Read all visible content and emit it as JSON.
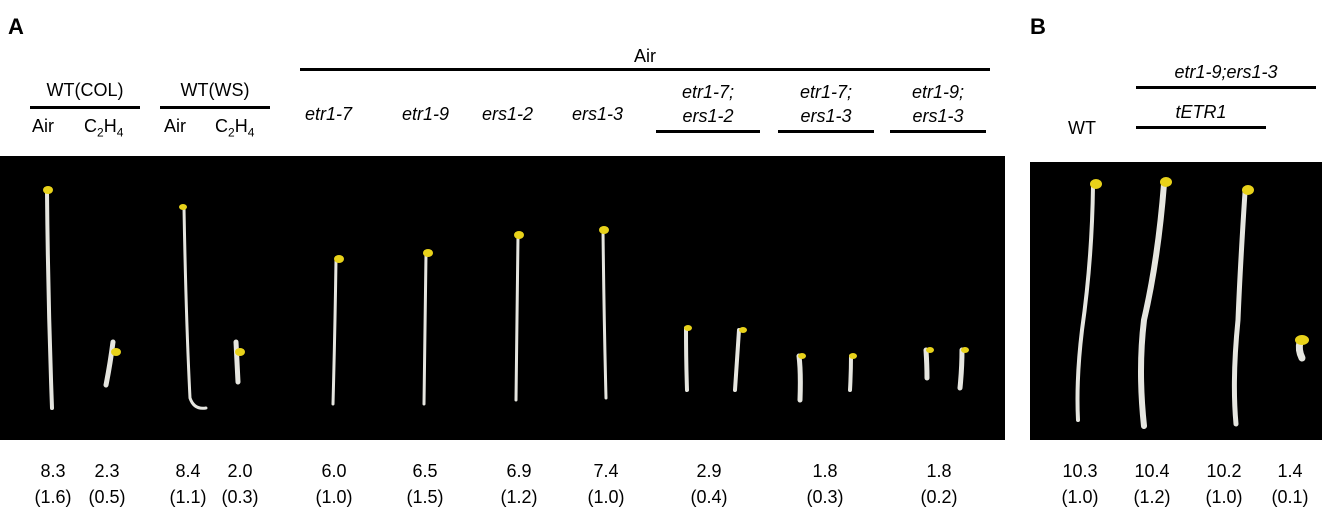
{
  "panels": [
    {
      "label": "A",
      "group_headers": [
        {
          "text": "Air"
        },
        {
          "text": "WT(COL)"
        },
        {
          "text": "WT(WS)"
        }
      ],
      "condition_labels": [
        "Air",
        "C2H4",
        "Air",
        "C2H4"
      ],
      "genotypes": [
        "etr1-7",
        "etr1-9",
        "ers1-2",
        "ers1-3"
      ],
      "double_mutants": [
        {
          "line1": "etr1-7;",
          "line2": "ers1-2"
        },
        {
          "line1": "etr1-7;",
          "line2": "ers1-3"
        },
        {
          "line1": "etr1-9;",
          "line2": "ers1-3"
        }
      ],
      "measurements": [
        {
          "mean": "8.3",
          "sd": "(1.6)"
        },
        {
          "mean": "2.3",
          "sd": "(0.5)"
        },
        {
          "mean": "8.4",
          "sd": "(1.1)"
        },
        {
          "mean": "2.0",
          "sd": "(0.3)"
        },
        {
          "mean": "6.0",
          "sd": "(1.0)"
        },
        {
          "mean": "6.5",
          "sd": "(1.5)"
        },
        {
          "mean": "6.9",
          "sd": "(1.2)"
        },
        {
          "mean": "7.4",
          "sd": "(1.0)"
        },
        {
          "mean": "2.9",
          "sd": "(0.4)"
        },
        {
          "mean": "1.8",
          "sd": "(0.3)"
        },
        {
          "mean": "1.8",
          "sd": "(0.2)"
        }
      ]
    },
    {
      "label": "B",
      "genotype_header": "etr1-9;ers1-3",
      "transgene": "tETR1",
      "wt_label": "WT",
      "measurements": [
        {
          "mean": "10.3",
          "sd": "(1.0)"
        },
        {
          "mean": "10.4",
          "sd": "(1.2)"
        },
        {
          "mean": "10.2",
          "sd": "(1.0)"
        },
        {
          "mean": "1.4",
          "sd": "(0.1)"
        }
      ]
    }
  ],
  "colors": {
    "background": "#ffffff",
    "photo_background": "#000000",
    "seedling_stem": "#e6e6e0",
    "cotyledon": "#e8d21a"
  }
}
